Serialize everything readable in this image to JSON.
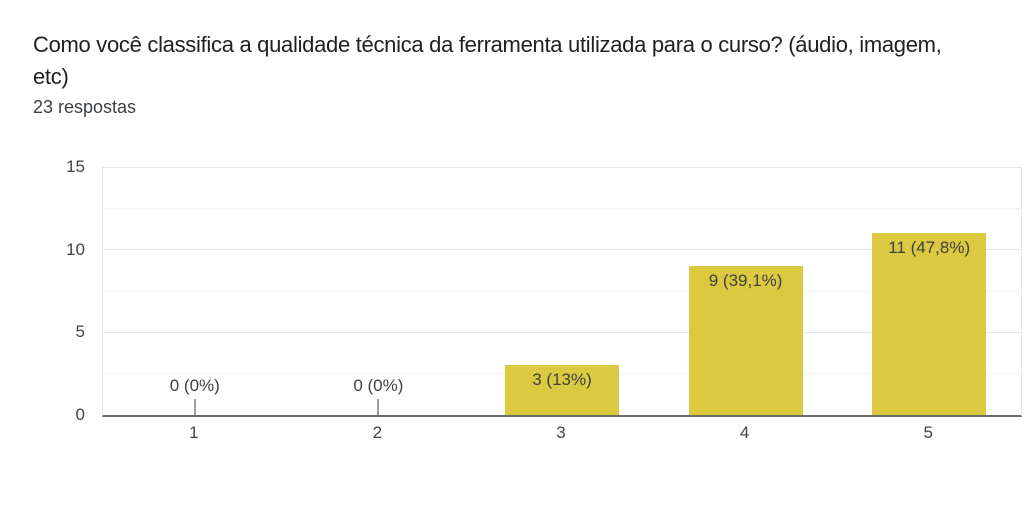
{
  "header": {
    "title_line1": "Como você classifica a qualidade técnica da ferramenta utilizada para o curso? (áudio, imagem,",
    "title_line2": "etc)",
    "responses": "23 respostas"
  },
  "chart_data": {
    "type": "bar",
    "title": "Como você classifica a qualidade técnica da ferramenta utilizada para o curso? (áudio, imagem, etc)",
    "subtitle": "23 respostas",
    "categories": [
      "1",
      "2",
      "3",
      "4",
      "5"
    ],
    "values": [
      0,
      0,
      3,
      9,
      11
    ],
    "data_labels": [
      "0 (0%)",
      "0 (0%)",
      "3 (13%)",
      "9 (39,1%)",
      "11 (47,8%)"
    ],
    "ylim": [
      0,
      15
    ],
    "yticks": [
      0,
      5,
      10,
      15
    ],
    "minor_gridlines": [
      2.5,
      7.5,
      12.5
    ],
    "bar_color": "#dbc93f",
    "xlabel": "",
    "ylabel": "",
    "legend": "none",
    "grid": true
  }
}
